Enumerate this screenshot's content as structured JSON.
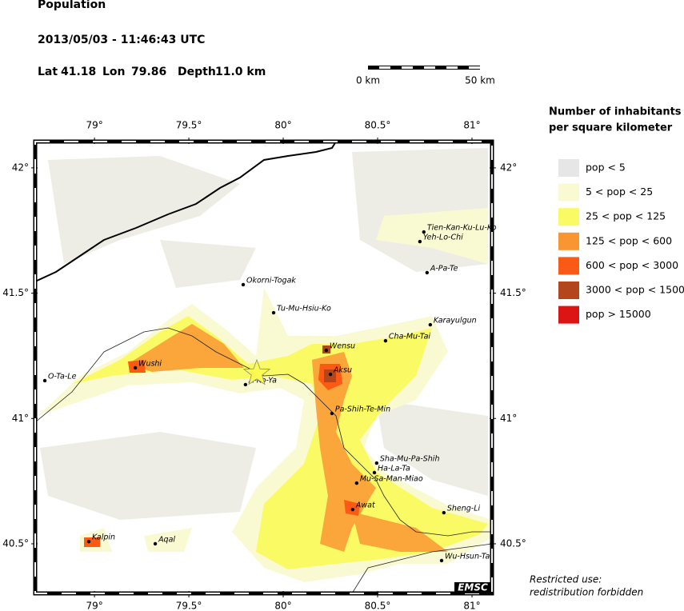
{
  "header": {
    "title": "Population",
    "datetime": "2013/05/03 - 11:46:43 UTC"
  },
  "epicenter": {
    "lat_label": "Lat",
    "lat": 41.18,
    "lon_label": "Lon",
    "lon": 79.86,
    "depth_label": "Depth",
    "depth": "11.0 km"
  },
  "scale": {
    "start": "0 km",
    "end": "50 km"
  },
  "map": {
    "xlim": [
      78.686,
      81.106
    ],
    "ylim": [
      40.302,
      42.105
    ],
    "xticks": [
      {
        "value": 79,
        "label": "79°"
      },
      {
        "value": 79.5,
        "label": "79.5°"
      },
      {
        "value": 80,
        "label": "80°"
      },
      {
        "value": 80.5,
        "label": "80.5°"
      },
      {
        "value": 81,
        "label": "81°"
      }
    ],
    "yticks": [
      {
        "value": 42,
        "label": "42°"
      },
      {
        "value": 41.5,
        "label": "41.5°"
      },
      {
        "value": 41,
        "label": "41°"
      },
      {
        "value": 40.5,
        "label": "40.5°"
      }
    ],
    "cities": [
      {
        "name": "Tien-Kan-Ku-Lu-Ko",
        "lon": 80.745,
        "lat": 41.744
      },
      {
        "name": "Yeh-Lo-Chi",
        "lon": 80.724,
        "lat": 41.706
      },
      {
        "name": "A-Pa-Te",
        "lon": 80.762,
        "lat": 41.582
      },
      {
        "name": "Okorni-Togak",
        "lon": 79.788,
        "lat": 41.534
      },
      {
        "name": "Tu-Mu-Hsiu-Ko",
        "lon": 79.949,
        "lat": 41.422
      },
      {
        "name": "Karayulgun",
        "lon": 80.779,
        "lat": 41.374
      },
      {
        "name": "Cha-Mu-Tai",
        "lon": 80.542,
        "lat": 41.31
      },
      {
        "name": "Wensu",
        "lon": 80.228,
        "lat": 41.272
      },
      {
        "name": "Aksu",
        "lon": 80.25,
        "lat": 41.176
      },
      {
        "name": "O-Ta-Le",
        "lon": 78.737,
        "lat": 41.151
      },
      {
        "name": "Wushi",
        "lon": 79.216,
        "lat": 41.202
      },
      {
        "name": "A-Ko-Ya",
        "lon": 79.8,
        "lat": 41.135
      },
      {
        "name": "Pa-Shih-Te-Min",
        "lon": 80.258,
        "lat": 41.02
      },
      {
        "name": "Sha-Mu-Pa-Shih",
        "lon": 80.495,
        "lat": 40.822
      },
      {
        "name": "Ha-La-Ta",
        "lon": 80.483,
        "lat": 40.784
      },
      {
        "name": "Mu-Sa-Man-Miao",
        "lon": 80.389,
        "lat": 40.742
      },
      {
        "name": "Awat",
        "lon": 80.368,
        "lat": 40.637
      },
      {
        "name": "Sheng-Li",
        "lon": 80.851,
        "lat": 40.624
      },
      {
        "name": "Kalpin",
        "lon": 78.97,
        "lat": 40.509
      },
      {
        "name": "Aqal",
        "lon": 79.322,
        "lat": 40.5
      },
      {
        "name": "Wu-Hsun-Ta",
        "lon": 80.839,
        "lat": 40.433
      }
    ],
    "logo": "EMSC"
  },
  "legend": {
    "title_lines": [
      "Number of inhabitants",
      "per square kilometer"
    ],
    "items": [
      {
        "label": "pop < 5",
        "color": "#e6e6e6"
      },
      {
        "label": "5 < pop < 25",
        "color": "#fafad2"
      },
      {
        "label": "25 < pop < 125",
        "color": "#fafa64"
      },
      {
        "label": "125 < pop < 600",
        "color": "#fa9632"
      },
      {
        "label": "600 < pop < 3000",
        "color": "#fa5a14"
      },
      {
        "label": "3000 < pop < 15000",
        "color": "#b4461e"
      },
      {
        "label": "pop > 15000",
        "color": "#dc1414"
      }
    ]
  },
  "footer": {
    "lines": [
      "Restricted use:",
      "redistribution forbidden"
    ]
  }
}
